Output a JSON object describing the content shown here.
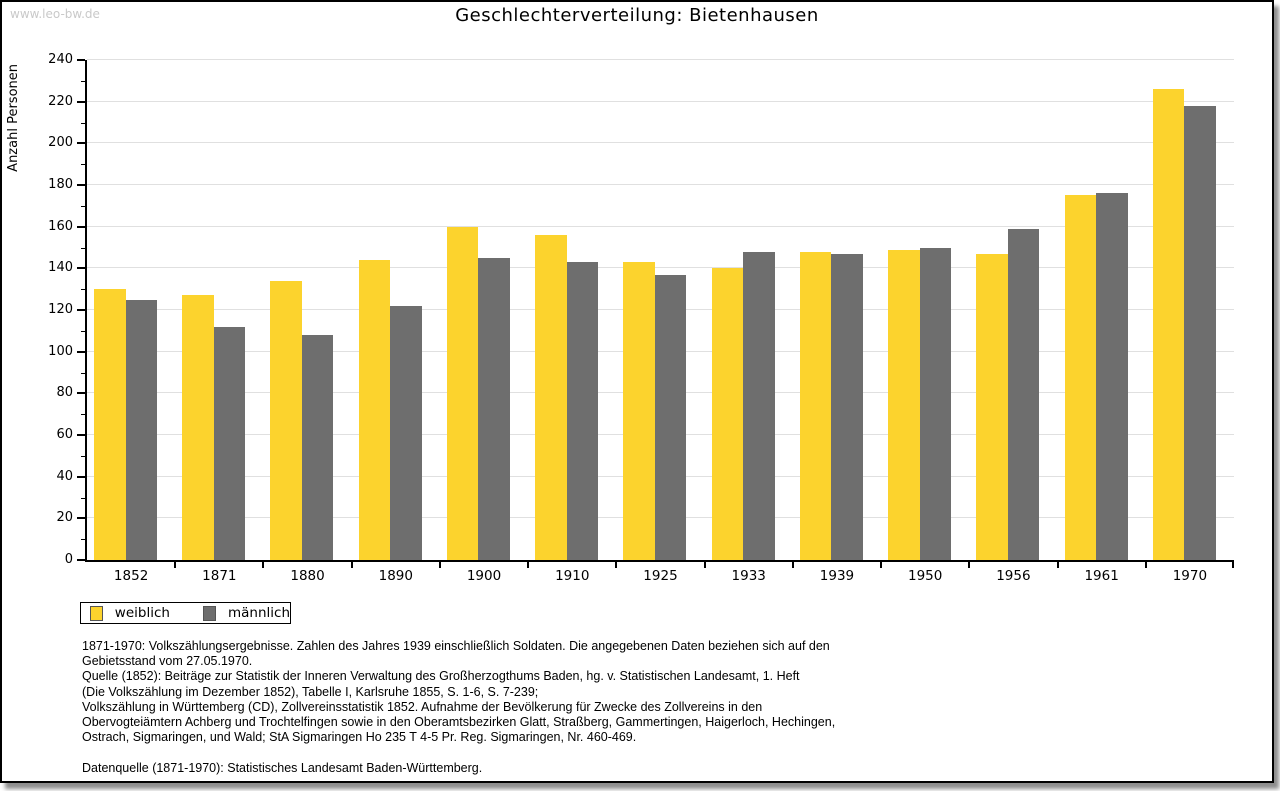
{
  "watermark": "www.leo-bw.de",
  "title": "Geschlechterverteilung: Bietenhausen",
  "chart_data": {
    "type": "bar",
    "title": "Geschlechterverteilung: Bietenhausen",
    "xlabel": "",
    "ylabel": "Anzahl Personen",
    "ylim": [
      0,
      240
    ],
    "ytick_step": 20,
    "yminor_step": 10,
    "grid": "horizontal-major",
    "legend_position": "bottom-left",
    "categories": [
      "1852",
      "1871",
      "1880",
      "1890",
      "1900",
      "1910",
      "1925",
      "1933",
      "1939",
      "1950",
      "1956",
      "1961",
      "1970"
    ],
    "series": [
      {
        "name": "weiblich",
        "color": "#FCD32D",
        "values": [
          130,
          127,
          134,
          144,
          160,
          156,
          143,
          140,
          148,
          149,
          147,
          175,
          226
        ]
      },
      {
        "name": "männlich",
        "color": "#6E6E6E",
        "values": [
          125,
          112,
          108,
          122,
          145,
          143,
          137,
          148,
          147,
          150,
          159,
          176,
          218
        ]
      }
    ]
  },
  "legend": {
    "items": [
      {
        "label": "weiblich",
        "color": "#FCD32D"
      },
      {
        "label": "männlich",
        "color": "#6E6E6E"
      }
    ]
  },
  "footer": {
    "lines": [
      "1871-1970: Volkszählungsergebnisse. Zahlen des Jahres 1939 einschließlich Soldaten. Die angegebenen Daten beziehen sich auf den",
      "Gebietsstand vom 27.05.1970.",
      "Quelle (1852): Beiträge zur Statistik der Inneren Verwaltung des Großherzogthums Baden, hg. v. Statistischen Landesamt, 1. Heft",
      "(Die Volkszählung im Dezember 1852), Tabelle I, Karlsruhe 1855, S. 1-6, S. 7-239;",
      "Volkszählung in Württemberg (CD), Zollvereinsstatistik 1852. Aufnahme der Bevölkerung für Zwecke des Zollvereins in den",
      "Obervogteiämtern Achberg und Trochtelfingen sowie in den Oberamtsbezirken Glatt, Straßberg, Gammertingen, Haigerloch, Hechingen,",
      "Ostrach, Sigmaringen, und Wald; StA Sigmaringen Ho 235 T 4-5 Pr. Reg. Sigmaringen, Nr. 460-469.",
      "",
      "Datenquelle (1871-1970): Statistisches Landesamt Baden-Württemberg."
    ]
  },
  "colors": {
    "female": "#FCD32D",
    "male": "#6E6E6E",
    "grid": "#E0E0E0",
    "axis": "#000000",
    "watermark": "#C9C9C9"
  }
}
